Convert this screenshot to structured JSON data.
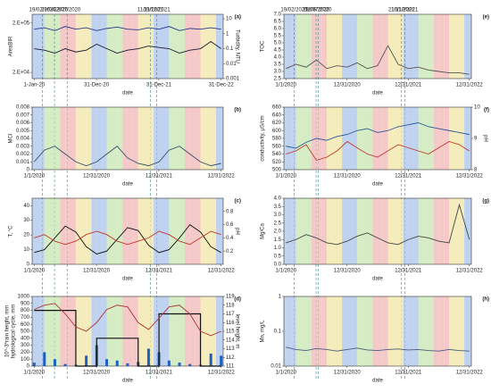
{
  "chart_data": [
    {
      "type": "line",
      "label": "(a)",
      "xlabel": "date",
      "ylabel": "AreaBIR",
      "y2label": "Turbidity, NTU",
      "ylog": true,
      "ylim": [
        15000,
        300000
      ],
      "yticks": [
        {
          "value": 200000,
          "label": "2.E+05"
        },
        {
          "value": 20000,
          "label": "2.E+04"
        }
      ],
      "y2log": true,
      "y2lim": [
        0.001,
        20
      ],
      "y2ticks": [
        10,
        1,
        0.1,
        0.01,
        0.001
      ],
      "xlim": [
        "2019-12-20",
        "2023-01-12"
      ],
      "xticks": [
        {
          "value": "2020-01-01",
          "label": "1-Jan-20"
        },
        {
          "value": "2020-12-31",
          "label": "31-Dec-20"
        },
        {
          "value": "2021-12-31",
          "label": "31-Dec-21"
        },
        {
          "value": "2022-12-31",
          "label": "31-Dec-22"
        }
      ],
      "events": [
        "19/02/2020",
        "29/04/2020",
        "12/07/2020",
        "19/12/2021",
        "11/11/2021"
      ],
      "x": [
        "2020-01-01",
        "2020-03-01",
        "2020-05-01",
        "2020-07-01",
        "2020-09-01",
        "2020-11-01",
        "2021-01-01",
        "2021-03-01",
        "2021-05-01",
        "2021-07-01",
        "2021-09-01",
        "2021-11-01",
        "2022-01-01",
        "2022-03-01",
        "2022-05-01",
        "2022-07-01",
        "2022-09-01",
        "2022-11-01",
        "2022-12-31"
      ],
      "series": [
        {
          "color": "#2a3a8c",
          "values": [
            150000,
            160000,
            140000,
            170000,
            150000,
            160000,
            140000,
            155000,
            165000,
            150000,
            145000,
            160000,
            150000,
            170000,
            140000,
            155000,
            150000,
            160000,
            150000
          ]
        },
        {
          "color": "#1a1a2e",
          "axis": "y2",
          "values": [
            0.1,
            0.08,
            0.05,
            0.1,
            0.06,
            0.08,
            0.2,
            0.1,
            0.05,
            0.08,
            0.1,
            0.15,
            0.12,
            0.1,
            0.05,
            0.08,
            0.1,
            0.3,
            0.1
          ]
        }
      ]
    },
    {
      "type": "line",
      "label": "(b)",
      "xlabel": "date",
      "ylabel": "MCI",
      "ylim": [
        0,
        0.008
      ],
      "yticks": [
        0,
        0.001,
        0.002,
        0.003,
        0.004,
        0.005,
        0.006,
        0.007,
        0.008
      ],
      "xlim": [
        "2019-12-20",
        "2023-01-12"
      ],
      "xticks": [
        {
          "value": "2020-01-01",
          "label": "1/1/2020"
        },
        {
          "value": "2020-12-31",
          "label": "12/31/2020"
        },
        {
          "value": "2021-12-31",
          "label": "12/31/2021"
        },
        {
          "value": "2022-12-31",
          "label": "12/31/2022"
        }
      ],
      "x": [
        "2020-01-01",
        "2020-03-01",
        "2020-05-01",
        "2020-07-01",
        "2020-09-01",
        "2020-11-01",
        "2021-01-01",
        "2021-03-01",
        "2021-05-01",
        "2021-07-01",
        "2021-09-01",
        "2021-11-01",
        "2022-01-01",
        "2022-03-01",
        "2022-05-01",
        "2022-07-01",
        "2022-09-01",
        "2022-11-01",
        "2022-12-31"
      ],
      "series": [
        {
          "color": "#35506b",
          "values": [
            0.001,
            0.0025,
            0.003,
            0.002,
            0.001,
            0.0005,
            0.001,
            0.002,
            0.003,
            0.0015,
            0.0008,
            0.0005,
            0.001,
            0.0025,
            0.003,
            0.002,
            0.001,
            0.0005,
            0.0008
          ]
        }
      ]
    },
    {
      "type": "line",
      "label": "(c)",
      "xlabel": "date",
      "ylabel": "T, °C",
      "y2label": "pH",
      "ylim": [
        0,
        45
      ],
      "yticks": [
        0,
        10,
        20,
        30,
        40
      ],
      "y2lim": [
        0,
        1
      ],
      "y2ticks": [
        0.2,
        0.4,
        0.6,
        0.8
      ],
      "xlim": [
        "2019-12-20",
        "2023-01-12"
      ],
      "xticks": [
        {
          "value": "2020-01-01",
          "label": "1/1/2020"
        },
        {
          "value": "2020-12-31",
          "label": "12/31/2020"
        },
        {
          "value": "2021-12-31",
          "label": "12/31/2021"
        },
        {
          "value": "2022-12-31",
          "label": "12/31/2022"
        }
      ],
      "x": [
        "2020-01-01",
        "2020-03-01",
        "2020-05-01",
        "2020-07-01",
        "2020-09-01",
        "2020-11-01",
        "2021-01-01",
        "2021-03-01",
        "2021-05-01",
        "2021-07-01",
        "2021-09-01",
        "2021-11-01",
        "2022-01-01",
        "2022-03-01",
        "2022-05-01",
        "2022-07-01",
        "2022-09-01",
        "2022-11-01",
        "2022-12-31"
      ],
      "series": [
        {
          "color": "#111111",
          "values": [
            8,
            10,
            18,
            26,
            22,
            12,
            7,
            9,
            17,
            25,
            23,
            13,
            8,
            10,
            18,
            27,
            22,
            12,
            8
          ]
        },
        {
          "color": "#c0392b",
          "axis": "y2",
          "values": [
            0.4,
            0.45,
            0.35,
            0.3,
            0.35,
            0.45,
            0.5,
            0.45,
            0.35,
            0.3,
            0.35,
            0.4,
            0.5,
            0.45,
            0.35,
            0.3,
            0.4,
            0.5,
            0.45
          ]
        }
      ]
    },
    {
      "type": "line",
      "label": "(d)",
      "xlabel": "date",
      "ylabel": [
        "10^-3*rain height, mm",
        "hydrological cycle, mm"
      ],
      "y2label": "level height, m",
      "ylim": [
        0,
        1000
      ],
      "yticks": [
        0,
        100,
        200,
        300,
        400,
        500,
        600,
        700,
        800,
        900,
        1000
      ],
      "y2lim": [
        111,
        119
      ],
      "y2ticks": [
        111,
        112,
        113,
        114,
        115,
        116,
        117,
        118,
        119
      ],
      "xlim": [
        "2019-12-20",
        "2023-01-12"
      ],
      "xticks": [
        {
          "value": "2020-01-01",
          "label": "1/1/2020"
        },
        {
          "value": "2020-12-31",
          "label": "12/31/2020"
        },
        {
          "value": "2021-12-31",
          "label": "12/31/2021"
        },
        {
          "value": "2022-12-31",
          "label": "12/31/2022"
        }
      ],
      "x": [
        "2020-01-01",
        "2020-03-01",
        "2020-05-01",
        "2020-07-01",
        "2020-09-01",
        "2020-11-01",
        "2021-01-01",
        "2021-03-01",
        "2021-05-01",
        "2021-07-01",
        "2021-09-01",
        "2021-11-01",
        "2022-01-01",
        "2022-03-01",
        "2022-05-01",
        "2022-07-01",
        "2022-09-01",
        "2022-11-01",
        "2022-12-31"
      ],
      "series": [
        {
          "color": "#1f5fbf",
          "style": "bar",
          "values": [
            50,
            200,
            100,
            30,
            20,
            150,
            300,
            100,
            80,
            40,
            60,
            250,
            200,
            80,
            50,
            30,
            20,
            180,
            150
          ]
        },
        {
          "color": "#111111",
          "style": "step",
          "values": [
            800,
            800,
            800,
            800,
            0,
            0,
            400,
            400,
            400,
            400,
            0,
            0,
            750,
            750,
            750,
            750,
            0,
            0,
            0
          ]
        },
        {
          "color": "#b03030",
          "axis": "y2",
          "values": [
            117.5,
            118,
            118.2,
            117,
            115.5,
            115,
            116,
            117.5,
            118,
            117.8,
            116,
            115.2,
            116.5,
            117.8,
            118,
            117,
            115,
            114.5,
            115
          ]
        }
      ]
    },
    {
      "type": "line",
      "label": "(e)",
      "xlabel": "date",
      "ylabel": "TOC",
      "ylim": [
        2.5,
        7
      ],
      "yticks": [
        {
          "value": 2.5,
          "label": "2.5"
        },
        {
          "value": 3,
          "label": "3.0"
        },
        {
          "value": 3.5,
          "label": "3.5"
        },
        {
          "value": 4,
          "label": "4.0"
        },
        {
          "value": 4.5,
          "label": "4.5"
        },
        {
          "value": 5,
          "label": "5.0"
        },
        {
          "value": 5.5,
          "label": "5.5"
        },
        {
          "value": 6,
          "label": "6.0"
        },
        {
          "value": 6.5,
          "label": "6.5"
        },
        {
          "value": 7,
          "label": "7.0"
        }
      ],
      "xlim": [
        "2019-12-20",
        "2023-01-12"
      ],
      "xticks": [
        {
          "value": "2020-01-01",
          "label": "1/1/2020"
        },
        {
          "value": "2020-12-31",
          "label": "12/31/2020"
        },
        {
          "value": "2021-12-31",
          "label": "12/31/2021"
        },
        {
          "value": "2022-12-31",
          "label": "12/31/2022"
        }
      ],
      "events": [
        "19/02/2020",
        "29/06/2020",
        "12/07/2020",
        "10/12/2021",
        "21/11/2021"
      ],
      "x": [
        "2020-01-01",
        "2020-03-01",
        "2020-05-01",
        "2020-07-01",
        "2020-09-01",
        "2020-11-01",
        "2021-01-01",
        "2021-03-01",
        "2021-05-01",
        "2021-07-01",
        "2021-09-01",
        "2021-11-01",
        "2022-01-01",
        "2022-03-01",
        "2022-05-01",
        "2022-07-01",
        "2022-09-01",
        "2022-11-01",
        "2022-12-31"
      ],
      "series": [
        {
          "color": "#555555",
          "values": [
            3.2,
            3.5,
            3.3,
            3.8,
            3.2,
            3.4,
            3.3,
            3.6,
            3.2,
            3.4,
            4.8,
            3.5,
            3.2,
            3.3,
            3.1,
            3.0,
            2.9,
            2.9,
            2.8
          ]
        }
      ]
    },
    {
      "type": "line",
      "label": "(f)",
      "xlabel": "date",
      "ylabel": "conductivity, μS/cm",
      "y2label": "pH",
      "ylim": [
        500,
        660
      ],
      "yticks": [
        500,
        520,
        540,
        560,
        580,
        600,
        620,
        640,
        660
      ],
      "y2lim": [
        8,
        10
      ],
      "y2ticks": [
        8,
        9,
        10
      ],
      "xlim": [
        "2019-12-20",
        "2023-01-12"
      ],
      "xticks": [
        {
          "value": "2020-01-01",
          "label": "1/1/2020"
        },
        {
          "value": "2020-12-31",
          "label": "12/31/2020"
        },
        {
          "value": "2021-12-31",
          "label": "12/31/2021"
        },
        {
          "value": "2022-12-31",
          "label": "12/31/2022"
        }
      ],
      "x": [
        "2020-01-01",
        "2020-03-01",
        "2020-05-01",
        "2020-07-01",
        "2020-09-01",
        "2020-11-01",
        "2021-01-01",
        "2021-03-01",
        "2021-05-01",
        "2021-07-01",
        "2021-09-01",
        "2021-11-01",
        "2022-01-01",
        "2022-03-01",
        "2022-05-01",
        "2022-07-01",
        "2022-09-01",
        "2022-11-01",
        "2022-12-31"
      ],
      "series": [
        {
          "color": "#2b5797",
          "values": [
            560,
            555,
            570,
            580,
            575,
            585,
            590,
            600,
            605,
            595,
            600,
            610,
            615,
            620,
            610,
            605,
            600,
            595,
            590
          ]
        },
        {
          "color": "#c0392b",
          "axis": "y2",
          "values": [
            8.5,
            8.6,
            8.8,
            8.3,
            8.4,
            8.6,
            8.9,
            8.7,
            8.5,
            8.4,
            8.6,
            8.8,
            8.7,
            8.6,
            8.5,
            8.7,
            8.9,
            8.8,
            8.6
          ]
        }
      ]
    },
    {
      "type": "line",
      "label": "(g)",
      "xlabel": "date",
      "ylabel": "Mg/Ca",
      "ylim": [
        0,
        4
      ],
      "yticks": [
        {
          "value": 0,
          "label": "0.0"
        },
        {
          "value": 0.5,
          "label": "0.5"
        },
        {
          "value": 1,
          "label": "1.0"
        },
        {
          "value": 1.5,
          "label": "1.5"
        },
        {
          "value": 2,
          "label": "2.0"
        },
        {
          "value": 2.5,
          "label": "2.5"
        },
        {
          "value": 3,
          "label": "3.0"
        },
        {
          "value": 3.5,
          "label": "3.5"
        },
        {
          "value": 4,
          "label": "4.0"
        }
      ],
      "xlim": [
        "2019-12-20",
        "2023-01-12"
      ],
      "xticks": [
        {
          "value": "2020-01-01",
          "label": "1/1/2020"
        },
        {
          "value": "2020-12-31",
          "label": "12/31/2020"
        },
        {
          "value": "2021-12-31",
          "label": "12/31/2021"
        },
        {
          "value": "2022-12-31",
          "label": "12/31/2022"
        }
      ],
      "x": [
        "2020-01-01",
        "2020-03-01",
        "2020-05-01",
        "2020-07-01",
        "2020-09-01",
        "2020-11-01",
        "2021-01-01",
        "2021-03-01",
        "2021-05-01",
        "2021-07-01",
        "2021-09-01",
        "2021-11-01",
        "2022-01-01",
        "2022-03-01",
        "2022-05-01",
        "2022-07-01",
        "2022-09-01",
        "2022-11-01",
        "2022-12-31"
      ],
      "series": [
        {
          "color": "#444444",
          "values": [
            1.3,
            1.5,
            1.8,
            1.6,
            1.3,
            1.2,
            1.4,
            1.7,
            1.9,
            1.6,
            1.3,
            1.2,
            1.5,
            1.7,
            1.6,
            1.4,
            1.3,
            3.6,
            1.5
          ]
        }
      ]
    },
    {
      "type": "line",
      "label": "(h)",
      "xlabel": "date",
      "ylabel": "Mn, mg/L",
      "ylog": true,
      "ylim": [
        0.01,
        1
      ],
      "yticks": [
        0.01,
        0.1,
        1
      ],
      "xlim": [
        "2019-12-20",
        "2023-01-12"
      ],
      "xticks": [
        {
          "value": "2020-01-01",
          "label": "1/1/2020"
        },
        {
          "value": "2020-12-31",
          "label": "12/31/2020"
        },
        {
          "value": "2021-12-31",
          "label": "12/31/2021"
        },
        {
          "value": "2022-12-31",
          "label": "12/31/2022"
        }
      ],
      "x": [
        "2020-01-01",
        "2020-03-01",
        "2020-05-01",
        "2020-07-01",
        "2020-09-01",
        "2020-11-01",
        "2021-01-01",
        "2021-03-01",
        "2021-05-01",
        "2021-07-01",
        "2021-09-01",
        "2021-11-01",
        "2022-01-01",
        "2022-03-01",
        "2022-05-01",
        "2022-07-01",
        "2022-09-01",
        "2022-11-01",
        "2022-12-31"
      ],
      "series": [
        {
          "color": "#4a5a7a",
          "values": [
            0.035,
            0.03,
            0.028,
            0.032,
            0.03,
            0.027,
            0.03,
            0.033,
            0.029,
            0.028,
            0.03,
            0.031,
            0.029,
            0.03,
            0.028,
            0.027,
            0.03,
            0.028,
            0.027
          ]
        }
      ]
    }
  ]
}
